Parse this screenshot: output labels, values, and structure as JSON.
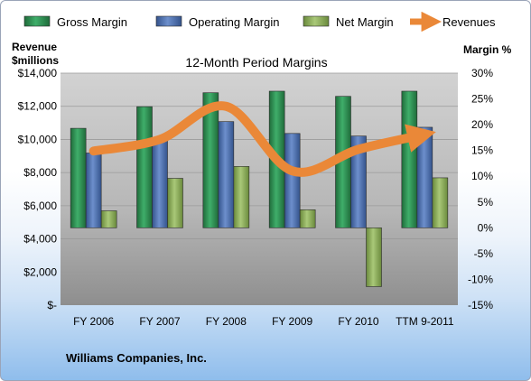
{
  "chart_data": {
    "type": "bar",
    "title": "12-Month Period Margins",
    "company": "Williams Companies, Inc.",
    "left_axis_label_line1": "Revenue",
    "left_axis_label_line2": "$millions",
    "right_axis_label": "Margin %",
    "categories": [
      "FY 2006",
      "FY 2007",
      "FY 2008",
      "FY 2009",
      "FY 2010",
      "TTM 9-2011"
    ],
    "left_ticks": [
      "$-",
      "$2,000",
      "$4,000",
      "$6,000",
      "$8,000",
      "$10,000",
      "$12,000",
      "$14,000"
    ],
    "right_ticks": [
      "-15%",
      "-10%",
      "-5%",
      "0%",
      "5%",
      "10%",
      "15%",
      "20%",
      "25%",
      "30%"
    ],
    "ylim_left": [
      0,
      14000
    ],
    "ylim_right": [
      -15,
      30
    ],
    "legend_position": "top",
    "series": [
      {
        "name": "Gross Margin",
        "axis": "right",
        "kind": "bar",
        "color": "#2e8b4f",
        "values": [
          19.3,
          23.5,
          26.2,
          26.5,
          25.5,
          26.5
        ]
      },
      {
        "name": "Operating Margin",
        "axis": "right",
        "kind": "bar",
        "color": "#4a6fb0",
        "values": [
          14.5,
          17.3,
          20.6,
          18.3,
          17.8,
          19.5
        ]
      },
      {
        "name": "Net Margin",
        "axis": "right",
        "kind": "bar",
        "color": "#8fb05a",
        "values": [
          3.3,
          9.6,
          11.9,
          3.5,
          -11.4,
          9.7
        ]
      },
      {
        "name": "Revenues",
        "axis": "left",
        "kind": "line",
        "color": "#ea8838",
        "values": [
          9300,
          10000,
          12000,
          8100,
          9400,
          10300
        ]
      }
    ]
  }
}
